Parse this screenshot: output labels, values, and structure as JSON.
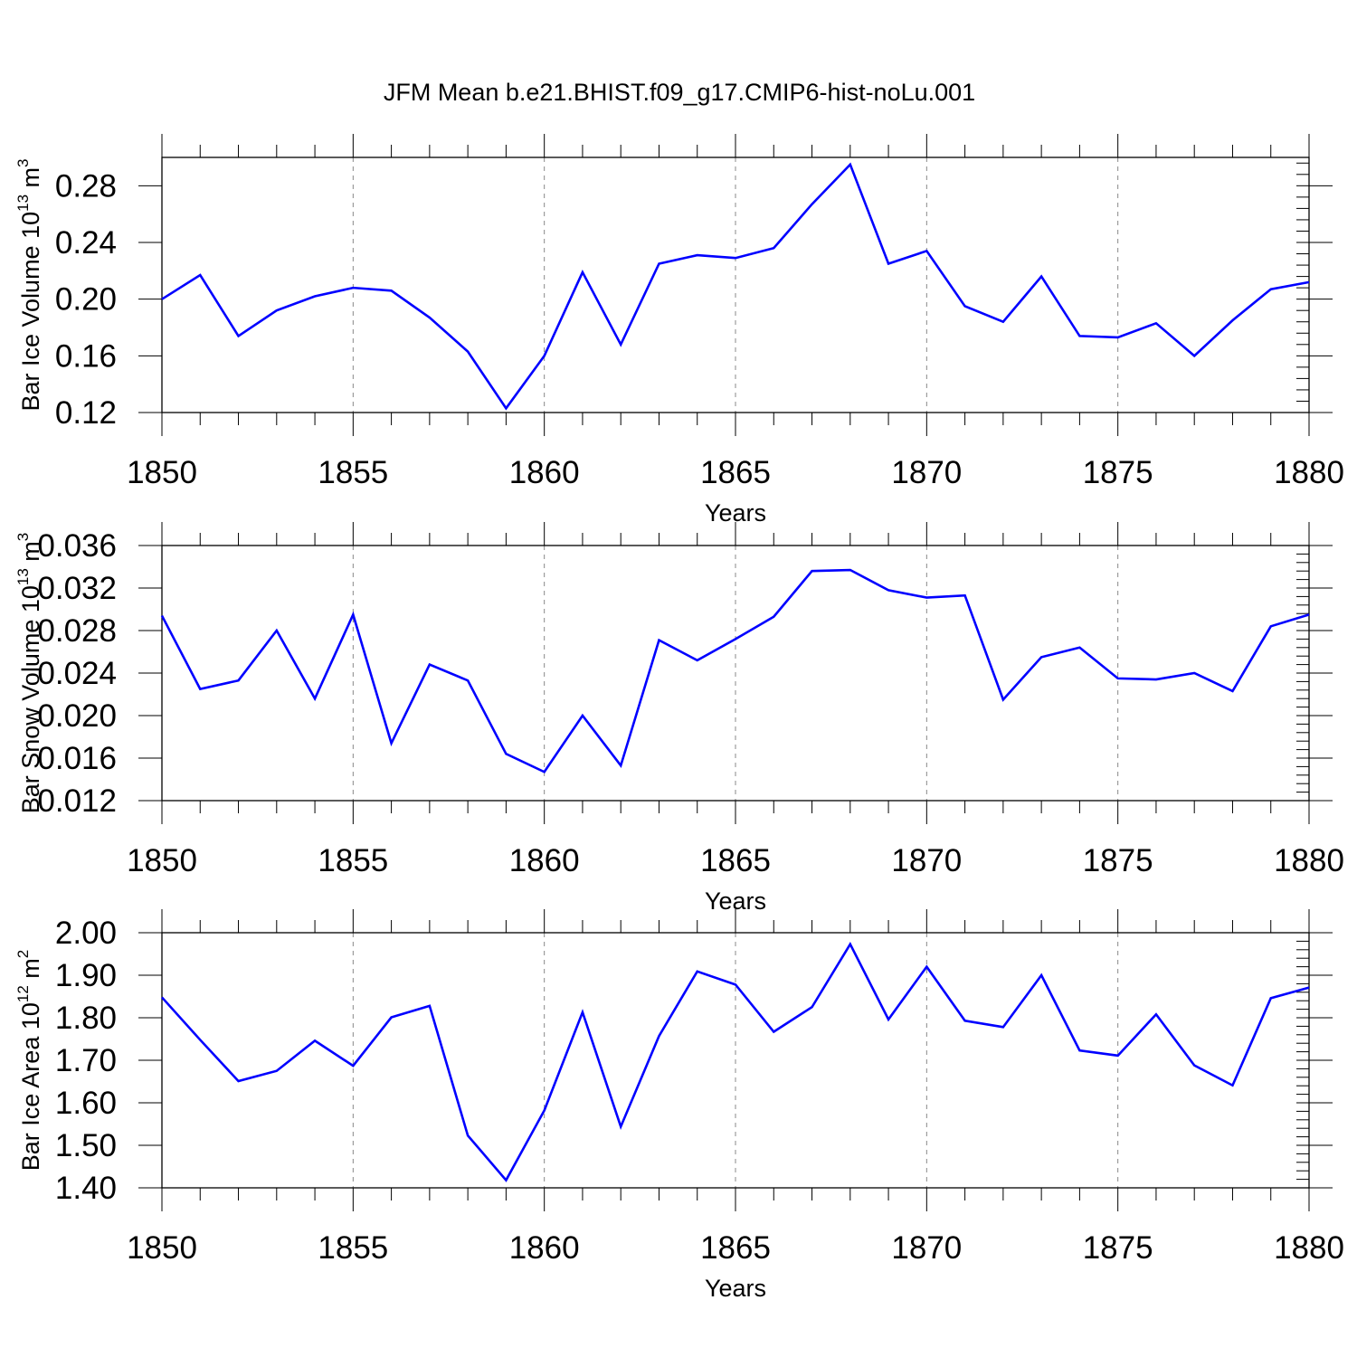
{
  "figure": {
    "title": "JFM Mean b.e21.BHIST.f09_g17.CMIP6-hist-noLu.001"
  },
  "colors": {
    "line": "#0000ff",
    "axis": "#000000",
    "grid": "#888888"
  },
  "chart_data": [
    {
      "type": "line",
      "ylabel": "Bar Ice Volume 10",
      "ylabel_exp": "13",
      "ylabel_unit": " m",
      "ylabel_unit_exp": "3",
      "xlabel": "Years",
      "xlim": [
        1850,
        1880
      ],
      "ylim": [
        0.12,
        0.3
      ],
      "yticks": [
        0.12,
        0.16,
        0.2,
        0.24,
        0.28
      ],
      "ytick_labels": [
        "0.12",
        "0.16",
        "0.20",
        "0.24",
        "0.28"
      ],
      "xticks": [
        1850,
        1855,
        1860,
        1865,
        1870,
        1875,
        1880
      ],
      "xtick_labels": [
        "1850",
        "1855",
        "1860",
        "1865",
        "1870",
        "1875",
        "1880"
      ],
      "grid": "vertical dashed at major x ticks",
      "series": [
        {
          "x": [
            1850,
            1851,
            1852,
            1853,
            1854,
            1855,
            1856,
            1857,
            1858,
            1859,
            1860,
            1861,
            1862,
            1863,
            1864,
            1865,
            1866,
            1867,
            1868,
            1869,
            1870,
            1871,
            1872,
            1873,
            1874,
            1875,
            1876,
            1877,
            1878,
            1879,
            1880
          ],
          "values": [
            0.2,
            0.217,
            0.174,
            0.192,
            0.202,
            0.208,
            0.206,
            0.187,
            0.163,
            0.123,
            0.16,
            0.219,
            0.168,
            0.225,
            0.231,
            0.229,
            0.236,
            0.267,
            0.295,
            0.225,
            0.234,
            0.195,
            0.184,
            0.216,
            0.174,
            0.173,
            0.183,
            0.16,
            0.185,
            0.207,
            0.212
          ]
        }
      ]
    },
    {
      "type": "line",
      "ylabel": "Bar Snow Volume 10",
      "ylabel_exp": "13",
      "ylabel_unit": " m",
      "ylabel_unit_exp": "3",
      "xlabel": "Years",
      "xlim": [
        1850,
        1880
      ],
      "ylim": [
        0.012,
        0.036
      ],
      "yticks": [
        0.012,
        0.016,
        0.02,
        0.024,
        0.028,
        0.032,
        0.036
      ],
      "ytick_labels": [
        "0.012",
        "0.016",
        "0.020",
        "0.024",
        "0.028",
        "0.032",
        "0.036"
      ],
      "xticks": [
        1850,
        1855,
        1860,
        1865,
        1870,
        1875,
        1880
      ],
      "xtick_labels": [
        "1850",
        "1855",
        "1860",
        "1865",
        "1870",
        "1875",
        "1880"
      ],
      "grid": "vertical dashed at major x ticks",
      "series": [
        {
          "x": [
            1850,
            1851,
            1852,
            1853,
            1854,
            1855,
            1856,
            1857,
            1858,
            1859,
            1860,
            1861,
            1862,
            1863,
            1864,
            1865,
            1866,
            1867,
            1868,
            1869,
            1870,
            1871,
            1872,
            1873,
            1874,
            1875,
            1876,
            1877,
            1878,
            1879,
            1880
          ],
          "values": [
            0.0294,
            0.0225,
            0.0233,
            0.028,
            0.0216,
            0.0295,
            0.0174,
            0.0248,
            0.0233,
            0.0164,
            0.0147,
            0.02,
            0.0153,
            0.0271,
            0.0252,
            0.0272,
            0.0293,
            0.0336,
            0.0337,
            0.0318,
            0.0311,
            0.0313,
            0.0215,
            0.0255,
            0.0264,
            0.0235,
            0.0234,
            0.024,
            0.0223,
            0.0284,
            0.0295
          ]
        }
      ]
    },
    {
      "type": "line",
      "ylabel": "Bar Ice Area 10",
      "ylabel_exp": "12",
      "ylabel_unit": " m",
      "ylabel_unit_exp": "2",
      "xlabel": "Years",
      "xlim": [
        1850,
        1880
      ],
      "ylim": [
        1.4,
        2.0
      ],
      "yticks": [
        1.4,
        1.5,
        1.6,
        1.7,
        1.8,
        1.9,
        2.0
      ],
      "ytick_labels": [
        "1.40",
        "1.50",
        "1.60",
        "1.70",
        "1.80",
        "1.90",
        "2.00"
      ],
      "xticks": [
        1850,
        1855,
        1860,
        1865,
        1870,
        1875,
        1880
      ],
      "xtick_labels": [
        "1850",
        "1855",
        "1860",
        "1865",
        "1870",
        "1875",
        "1880"
      ],
      "grid": "vertical dashed at major x ticks",
      "series": [
        {
          "x": [
            1850,
            1851,
            1852,
            1853,
            1854,
            1855,
            1856,
            1857,
            1858,
            1859,
            1860,
            1861,
            1862,
            1863,
            1864,
            1865,
            1866,
            1867,
            1868,
            1869,
            1870,
            1871,
            1872,
            1873,
            1874,
            1875,
            1876,
            1877,
            1878,
            1879,
            1880
          ],
          "values": [
            1.848,
            1.748,
            1.651,
            1.675,
            1.746,
            1.687,
            1.801,
            1.828,
            1.523,
            1.418,
            1.582,
            1.813,
            1.544,
            1.757,
            1.909,
            1.878,
            1.767,
            1.825,
            1.973,
            1.796,
            1.92,
            1.793,
            1.778,
            1.9,
            1.723,
            1.711,
            1.808,
            1.688,
            1.641,
            1.846,
            1.871
          ]
        }
      ]
    }
  ]
}
